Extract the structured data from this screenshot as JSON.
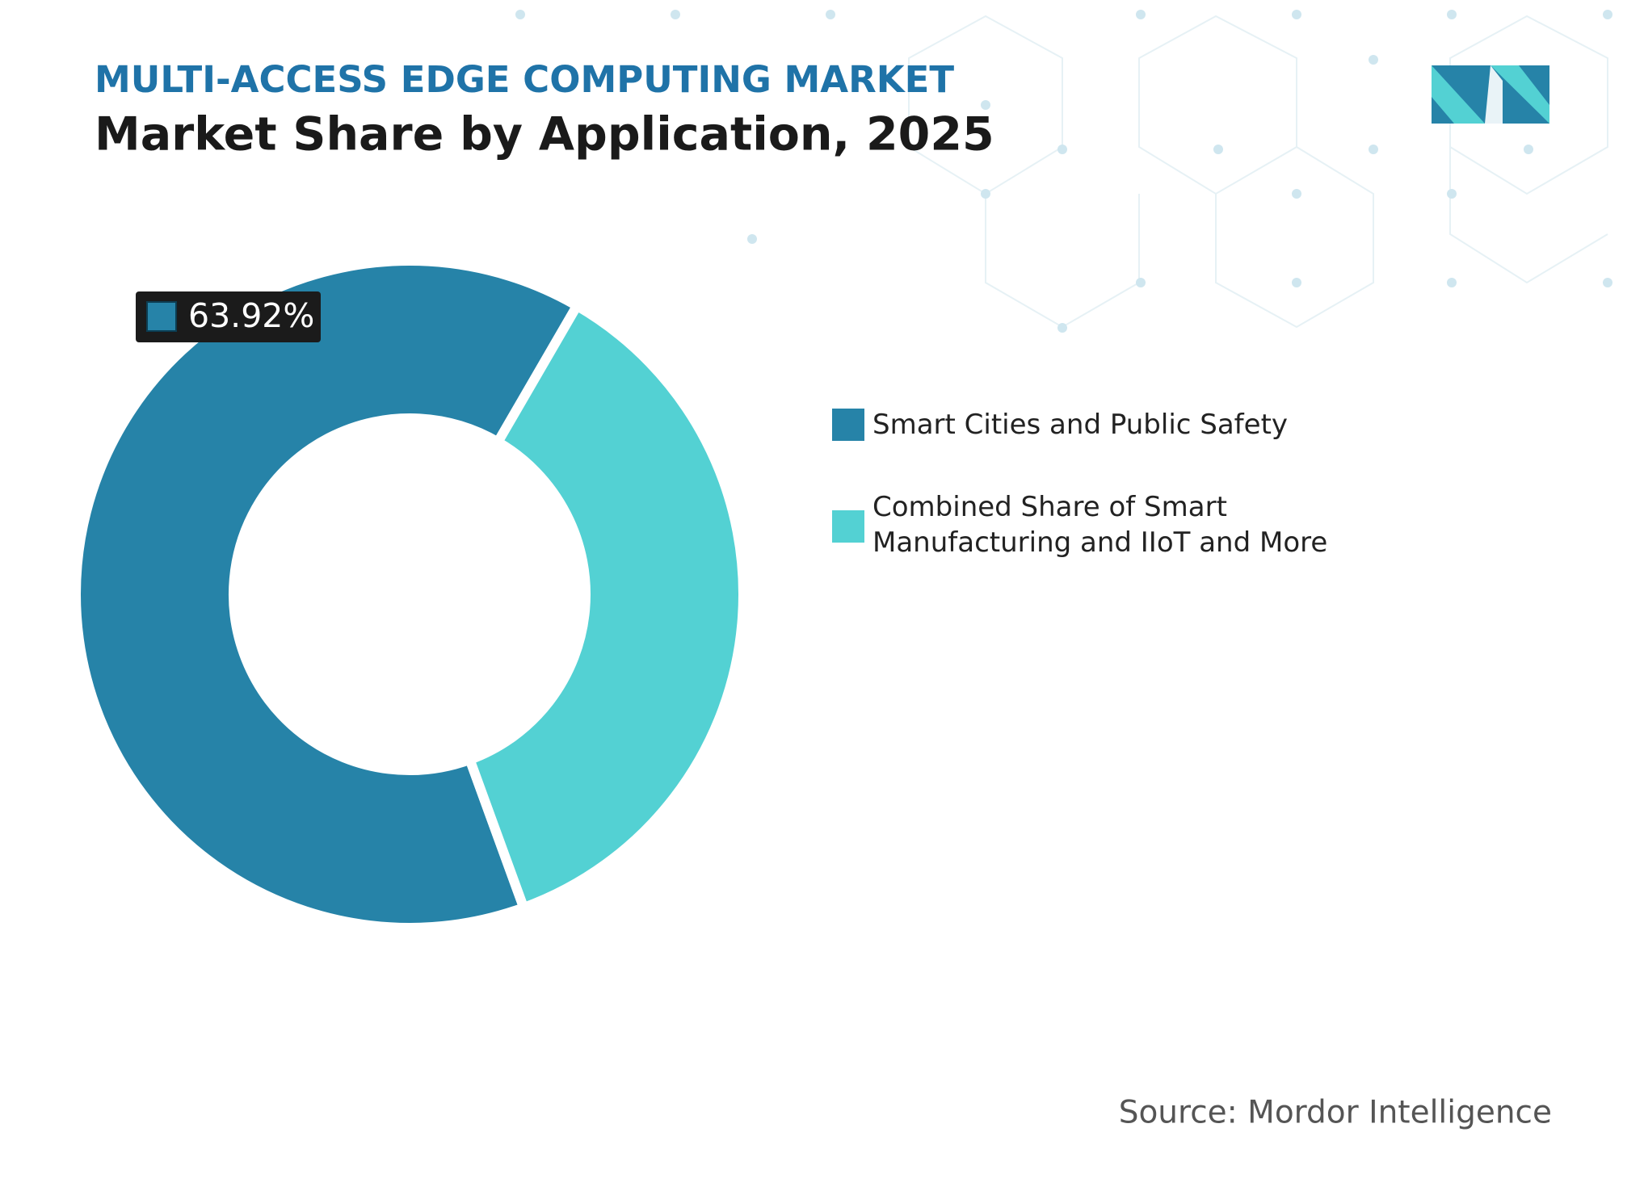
{
  "chart_data": {
    "type": "pie",
    "subtitle": "MULTI-ACCESS EDGE COMPUTING MARKET",
    "title": "Market Share by Application, 2025",
    "categories": [
      "Smart Cities and Public Safety",
      "Combined Share of Smart Manufacturing and IIoT and More"
    ],
    "values": [
      63.92,
      36.08
    ],
    "value_labels": [
      "63.92%",
      null
    ],
    "colors": [
      "#2683a8",
      "#53d1d3"
    ],
    "donut": true,
    "source": "Source: Mordor Intelligence"
  }
}
